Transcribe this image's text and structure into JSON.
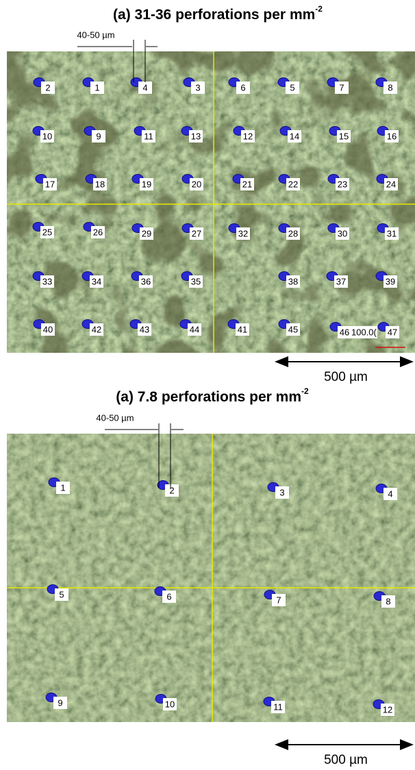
{
  "panels": [
    {
      "title": "(a)  31-36 perforations per mm",
      "title_superscript": "-2",
      "pitch_label": "40-50 µm",
      "scale_label": "500 µm",
      "perforation_labels": [
        "2",
        "1",
        "4",
        "3",
        "6",
        "5",
        "7",
        "8",
        "10",
        "9",
        "11",
        "13",
        "12",
        "14",
        "15",
        "16",
        "17",
        "18",
        "19",
        "20",
        "21",
        "22",
        "23",
        "24",
        "25",
        "26",
        "29",
        "27",
        "32",
        "28",
        "30",
        "31",
        "33",
        "34",
        "36",
        "35",
        "38",
        "37",
        "39",
        "40",
        "42",
        "43",
        "44",
        "41",
        "45",
        "46",
        "47"
      ],
      "overlay_text": "100.0("
    },
    {
      "title": "(a)  7.8 perforations per mm",
      "title_superscript": "-2",
      "pitch_label": "40-50 µm",
      "scale_label": "500 µm",
      "perforation_labels": [
        "1",
        "2",
        "3",
        "4",
        "5",
        "6",
        "7",
        "8",
        "9",
        "10",
        "11",
        "12"
      ]
    }
  ]
}
